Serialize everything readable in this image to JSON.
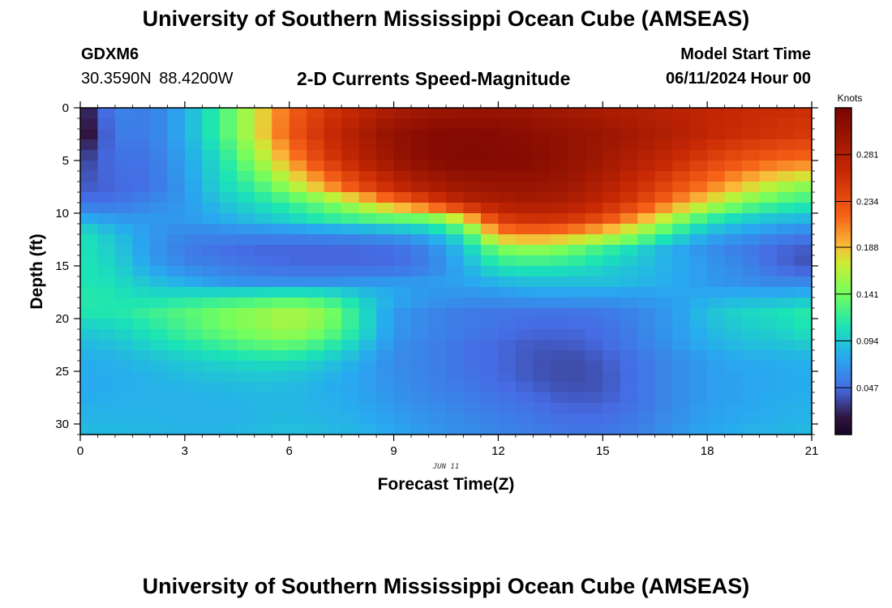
{
  "header": {
    "title": "University of Southern Mississippi Ocean Cube (AMSEAS)",
    "station_id": "GDXM6",
    "station_coords": "30.3590N  88.4200W",
    "subtitle": "2-D Currents Speed-Magnitude",
    "model_start_label": "Model Start Time",
    "model_start_value": "06/11/2024 Hour 00"
  },
  "footer": {
    "title": "University of Southern Mississippi Ocean Cube (AMSEAS)"
  },
  "chart_data": {
    "type": "heatmap",
    "title": "2-D Currents Speed-Magnitude",
    "xlabel": "Forecast Time(Z)",
    "ylabel": "Depth (ft)",
    "date_label": "JUN 11",
    "x_ticks": [
      "0",
      "3",
      "6",
      "9",
      "12",
      "15",
      "18",
      "21"
    ],
    "x_tick_values": [
      0,
      3,
      6,
      9,
      12,
      15,
      18,
      21
    ],
    "y_ticks": [
      "0",
      "5",
      "10",
      "15",
      "20",
      "25",
      "30"
    ],
    "y_tick_values": [
      0,
      5,
      10,
      15,
      20,
      25,
      30
    ],
    "xlim": [
      0,
      21
    ],
    "ylim": [
      31,
      0
    ],
    "colorbar": {
      "label": "Knots",
      "range": [
        0.0,
        0.328
      ],
      "tick_labels": [
        "0.281",
        "0.234",
        "0.188",
        "0.141",
        "0.094",
        "0.047"
      ],
      "tick_values": [
        0.281,
        0.234,
        0.188,
        0.141,
        0.094,
        0.047
      ]
    },
    "depth_profile_ft": [
      0,
      2.5,
      5,
      7.5,
      9,
      10.5,
      12,
      13.5,
      15,
      16.5,
      18,
      19.5,
      21,
      22.5,
      24,
      26,
      28,
      30,
      31
    ],
    "time_hours": [
      0,
      1,
      2,
      3,
      4,
      5,
      6,
      7,
      8,
      9,
      10,
      11,
      12,
      13,
      14,
      15,
      16,
      17,
      18,
      19,
      20,
      21
    ],
    "speed_knots": [
      [
        0.012,
        0.06,
        0.055,
        0.08,
        0.12,
        0.17,
        0.22,
        0.25,
        0.27,
        0.285,
        0.295,
        0.3,
        0.3,
        0.295,
        0.29,
        0.285,
        0.28,
        0.275,
        0.27,
        0.265,
        0.262,
        0.26
      ],
      [
        0.005,
        0.055,
        0.055,
        0.08,
        0.12,
        0.17,
        0.225,
        0.26,
        0.285,
        0.305,
        0.315,
        0.318,
        0.315,
        0.31,
        0.305,
        0.298,
        0.29,
        0.28,
        0.27,
        0.26,
        0.255,
        0.25
      ],
      [
        0.03,
        0.05,
        0.05,
        0.075,
        0.105,
        0.15,
        0.2,
        0.245,
        0.275,
        0.3,
        0.315,
        0.32,
        0.318,
        0.315,
        0.305,
        0.295,
        0.28,
        0.265,
        0.245,
        0.23,
        0.22,
        0.215
      ],
      [
        0.04,
        0.045,
        0.05,
        0.07,
        0.1,
        0.12,
        0.155,
        0.195,
        0.235,
        0.265,
        0.285,
        0.295,
        0.3,
        0.3,
        0.295,
        0.28,
        0.26,
        0.235,
        0.21,
        0.185,
        0.16,
        0.145
      ],
      [
        0.05,
        0.05,
        0.06,
        0.07,
        0.09,
        0.105,
        0.12,
        0.14,
        0.17,
        0.21,
        0.24,
        0.275,
        0.285,
        0.29,
        0.285,
        0.27,
        0.245,
        0.21,
        0.175,
        0.145,
        0.125,
        0.115
      ],
      [
        0.08,
        0.07,
        0.07,
        0.07,
        0.08,
        0.09,
        0.1,
        0.115,
        0.125,
        0.135,
        0.14,
        0.18,
        0.25,
        0.26,
        0.255,
        0.235,
        0.2,
        0.16,
        0.12,
        0.1,
        0.09,
        0.085
      ],
      [
        0.11,
        0.09,
        0.07,
        0.06,
        0.06,
        0.06,
        0.06,
        0.062,
        0.065,
        0.07,
        0.08,
        0.11,
        0.2,
        0.21,
        0.2,
        0.18,
        0.15,
        0.11,
        0.08,
        0.07,
        0.06,
        0.055
      ],
      [
        0.11,
        0.095,
        0.07,
        0.055,
        0.05,
        0.045,
        0.045,
        0.045,
        0.045,
        0.048,
        0.06,
        0.09,
        0.14,
        0.15,
        0.14,
        0.12,
        0.1,
        0.08,
        0.065,
        0.055,
        0.045,
        0.04
      ],
      [
        0.11,
        0.1,
        0.075,
        0.06,
        0.055,
        0.05,
        0.045,
        0.045,
        0.045,
        0.045,
        0.055,
        0.08,
        0.11,
        0.115,
        0.11,
        0.1,
        0.09,
        0.08,
        0.07,
        0.06,
        0.045,
        0.035
      ],
      [
        0.11,
        0.105,
        0.09,
        0.08,
        0.07,
        0.065,
        0.065,
        0.065,
        0.068,
        0.07,
        0.07,
        0.075,
        0.085,
        0.09,
        0.09,
        0.09,
        0.085,
        0.08,
        0.07,
        0.065,
        0.06,
        0.06
      ],
      [
        0.115,
        0.11,
        0.105,
        0.11,
        0.115,
        0.12,
        0.125,
        0.12,
        0.1,
        0.08,
        0.07,
        0.065,
        0.065,
        0.07,
        0.07,
        0.07,
        0.07,
        0.075,
        0.08,
        0.085,
        0.085,
        0.09
      ],
      [
        0.11,
        0.11,
        0.12,
        0.13,
        0.14,
        0.15,
        0.16,
        0.15,
        0.11,
        0.07,
        0.06,
        0.055,
        0.052,
        0.05,
        0.05,
        0.052,
        0.06,
        0.07,
        0.09,
        0.1,
        0.105,
        0.115
      ],
      [
        0.095,
        0.1,
        0.11,
        0.125,
        0.14,
        0.15,
        0.16,
        0.145,
        0.11,
        0.07,
        0.06,
        0.055,
        0.05,
        0.045,
        0.045,
        0.048,
        0.058,
        0.07,
        0.085,
        0.095,
        0.1,
        0.11
      ],
      [
        0.085,
        0.09,
        0.1,
        0.11,
        0.12,
        0.13,
        0.135,
        0.12,
        0.095,
        0.065,
        0.058,
        0.05,
        0.045,
        0.04,
        0.04,
        0.045,
        0.055,
        0.068,
        0.08,
        0.088,
        0.09,
        0.095
      ],
      [
        0.08,
        0.082,
        0.088,
        0.095,
        0.1,
        0.105,
        0.105,
        0.095,
        0.08,
        0.062,
        0.058,
        0.05,
        0.045,
        0.038,
        0.035,
        0.04,
        0.05,
        0.062,
        0.072,
        0.078,
        0.08,
        0.082
      ],
      [
        0.078,
        0.08,
        0.082,
        0.085,
        0.088,
        0.09,
        0.088,
        0.082,
        0.075,
        0.065,
        0.058,
        0.052,
        0.046,
        0.04,
        0.035,
        0.038,
        0.05,
        0.062,
        0.072,
        0.075,
        0.078,
        0.08
      ],
      [
        0.08,
        0.082,
        0.082,
        0.082,
        0.082,
        0.084,
        0.085,
        0.082,
        0.078,
        0.068,
        0.062,
        0.058,
        0.052,
        0.048,
        0.042,
        0.042,
        0.05,
        0.062,
        0.072,
        0.076,
        0.08,
        0.082
      ],
      [
        0.085,
        0.085,
        0.084,
        0.083,
        0.082,
        0.085,
        0.088,
        0.085,
        0.082,
        0.075,
        0.068,
        0.062,
        0.058,
        0.054,
        0.05,
        0.05,
        0.055,
        0.065,
        0.075,
        0.08,
        0.082,
        0.085
      ],
      [
        0.088,
        0.088,
        0.086,
        0.085,
        0.085,
        0.088,
        0.09,
        0.088,
        0.085,
        0.078,
        0.07,
        0.065,
        0.06,
        0.056,
        0.052,
        0.052,
        0.058,
        0.068,
        0.078,
        0.082,
        0.085,
        0.088
      ]
    ]
  }
}
